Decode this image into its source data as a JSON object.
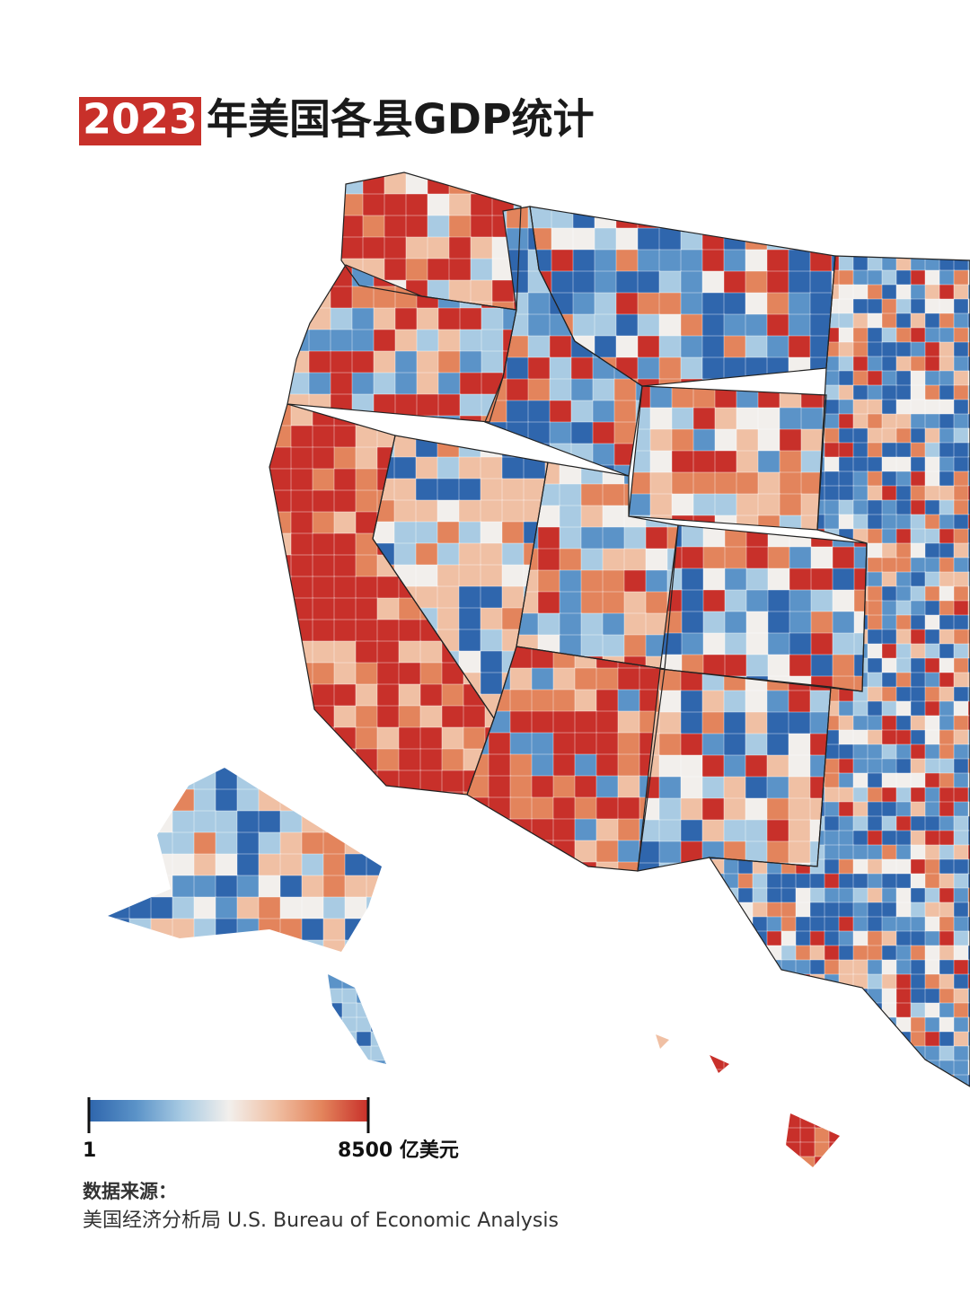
{
  "header": {
    "year": "2023",
    "title": "年美国各县GDP统计"
  },
  "legend": {
    "colors": [
      "#2f66ad",
      "#5b93c8",
      "#a9cbe3",
      "#f2efec",
      "#f0c0a4",
      "#e3845c",
      "#c8302a"
    ],
    "min_label": "1",
    "max_label": "8500 亿美元"
  },
  "source": {
    "heading": "数据来源：",
    "text": "美国经济分析局 U.S. Bureau of Economic Analysis"
  }
}
